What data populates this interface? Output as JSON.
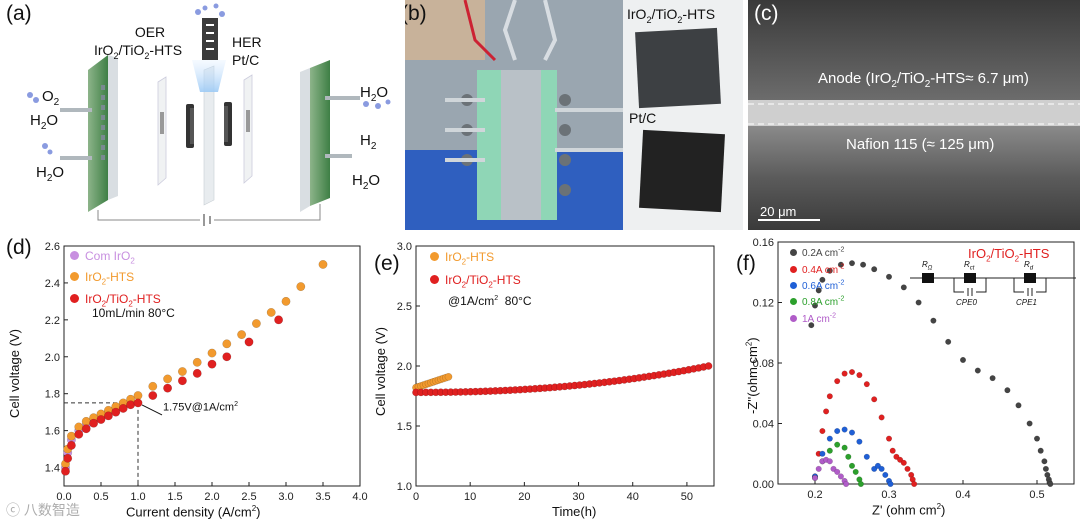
{
  "panel_a": {
    "label": "(a)",
    "oer_line1": "OER",
    "oer_line2_pre": "IrO",
    "oer_line2_sub1": "2",
    "oer_line2_mid": "/TiO",
    "oer_line2_sub2": "2",
    "oer_line2_post": "-HTS",
    "her_line1": "HER",
    "her_line2": "Pt/C",
    "o2_pre": "O",
    "o2_sub": "2",
    "h2o_left_top": "H",
    "h2o_left_top_sub": "2",
    "h2o_left_top_post": "O",
    "h2o_left_bottom": "H",
    "h2o_left_bottom_sub": "2",
    "h2o_left_bottom_post": "O",
    "h2o_right_top": "H",
    "h2o_right_top_sub": "2",
    "h2o_right_top_post": "O",
    "h2_right": "H",
    "h2_right_sub": "2",
    "h2o_right_bottom": "H",
    "h2o_right_bottom_sub": "2",
    "h2o_right_bottom_post": "O"
  },
  "panel_b": {
    "label": "(b)",
    "sample1_pre": "IrO",
    "sample1_sub1": "2",
    "sample1_mid": "/TiO",
    "sample1_sub2": "2",
    "sample1_post": "-HTS",
    "sample2": "Pt/C"
  },
  "panel_c": {
    "label": "(c)",
    "anode_pre": "Anode (IrO",
    "anode_sub1": "2",
    "anode_mid": "/TiO",
    "anode_sub2": "2",
    "anode_post": "-HTS≈ 6.7 μm)",
    "nafion": "Nafion 115 (≈ 125 μm)",
    "scale": "20 μm"
  },
  "panel_d": {
    "label": "(d)",
    "legend": [
      {
        "pre": "Com IrO",
        "sub": "2",
        "post": "",
        "color": "#c890e0"
      },
      {
        "pre": "IrO",
        "sub": "2",
        "post": "-HTS",
        "color": "#f29a2e"
      },
      {
        "pre": "IrO",
        "sub": "2",
        "post": "/TiO",
        "sub2": "2",
        "post2": "-HTS",
        "color": "#e02020"
      }
    ],
    "condition": "10mL/min 80°C",
    "annotation": "1.75V@1A/cm",
    "annotation_sup": "2",
    "xlabel": "Current density (A/cm",
    "xlabel_sup": "2",
    "xlabel_end": ")",
    "ylabel": "Cell voltage (V)"
  },
  "panel_e": {
    "label": "(e)",
    "legend": [
      {
        "pre": "IrO",
        "sub": "2",
        "post": "-HTS",
        "color": "#f29a2e"
      },
      {
        "pre": "IrO",
        "sub": "2",
        "post": "/TiO",
        "sub2": "2",
        "post2": "-HTS",
        "color": "#e02020"
      }
    ],
    "condition_pre": "@1A/cm",
    "condition_sup": "2",
    "condition_post": "  80°C",
    "xlabel": "Time(h)",
    "ylabel": "Cell voltage (V)"
  },
  "panel_f": {
    "label": "(f)",
    "title_pre": "IrO",
    "title_sub1": "2",
    "title_mid": "/TiO",
    "title_sub2": "2",
    "title_post": "-HTS",
    "legend": [
      {
        "text": "0.2A cm",
        "sup": "-2",
        "color": "#444444"
      },
      {
        "text": "0.4A cm",
        "sup": "-2",
        "color": "#e02020"
      },
      {
        "text": "0.6A cm",
        "sup": "-2",
        "color": "#1f5fd6"
      },
      {
        "text": "0.8A cm",
        "sup": "-2",
        "color": "#2ca02c"
      },
      {
        "text": "1A cm",
        "sup": "-2",
        "color": "#b05cc8"
      }
    ],
    "circuit": {
      "r1": "R",
      "r1_sub": "Ω",
      "r2": "R",
      "r2_sub": "ct",
      "r3": "R",
      "r3_sub": "d",
      "cpe0": "CPE0",
      "cpe1": "CPE1"
    },
    "xlabel_pre": "Z' (ohm cm",
    "xlabel_sup": "2",
    "xlabel_post": ")",
    "ylabel_pre": "-Z''(ohm cm",
    "ylabel_sup": "2",
    "ylabel_post": ")"
  },
  "watermark": "ⓒ 八数智造",
  "chart_data": [
    {
      "id": "d",
      "type": "scatter",
      "xlim": [
        0,
        4.0
      ],
      "ylim": [
        1.3,
        2.6
      ],
      "xticks": [
        "0.0",
        "0.5",
        "1.0",
        "1.5",
        "2.0",
        "2.5",
        "3.0",
        "3.5",
        "4.0"
      ],
      "yticks": [
        "1.4",
        "1.6",
        "1.8",
        "2.0",
        "2.2",
        "2.4",
        "2.6"
      ],
      "xlabel": "Current density (A/cm2)",
      "ylabel": "Cell voltage (V)",
      "series": [
        {
          "name": "Com IrO2",
          "color": "#c890e0",
          "x": [
            0.02,
            0.05,
            0.1,
            0.2,
            0.3,
            0.4,
            0.5,
            0.6,
            0.7,
            0.8
          ],
          "y": [
            1.4,
            1.48,
            1.55,
            1.6,
            1.63,
            1.66,
            1.68,
            1.7,
            1.72,
            1.74
          ]
        },
        {
          "name": "IrO2-HTS",
          "color": "#f29a2e",
          "x": [
            0.02,
            0.05,
            0.1,
            0.2,
            0.3,
            0.4,
            0.5,
            0.6,
            0.7,
            0.8,
            0.9,
            1.0,
            1.2,
            1.4,
            1.6,
            1.8,
            2.0,
            2.2,
            2.4,
            2.6,
            2.8,
            3.0,
            3.2,
            3.5
          ],
          "y": [
            1.42,
            1.5,
            1.57,
            1.62,
            1.65,
            1.67,
            1.69,
            1.71,
            1.73,
            1.75,
            1.77,
            1.79,
            1.84,
            1.88,
            1.92,
            1.97,
            2.02,
            2.07,
            2.12,
            2.18,
            2.24,
            2.3,
            2.38,
            2.5
          ]
        },
        {
          "name": "IrO2/TiO2-HTS",
          "color": "#e02020",
          "x": [
            0.02,
            0.05,
            0.1,
            0.2,
            0.3,
            0.4,
            0.5,
            0.6,
            0.7,
            0.8,
            0.9,
            1.0,
            1.2,
            1.4,
            1.6,
            1.8,
            2.0,
            2.2,
            2.5,
            2.9
          ],
          "y": [
            1.38,
            1.45,
            1.52,
            1.58,
            1.61,
            1.64,
            1.66,
            1.68,
            1.7,
            1.72,
            1.74,
            1.75,
            1.79,
            1.83,
            1.87,
            1.91,
            1.96,
            2.0,
            2.08,
            2.2
          ]
        }
      ],
      "annotation": {
        "x": 1.0,
        "y": 1.75,
        "text": "1.75V@1A/cm2"
      }
    },
    {
      "id": "e",
      "type": "scatter",
      "xlim": [
        0,
        55
      ],
      "ylim": [
        1.0,
        3.0
      ],
      "xticks": [
        "0",
        "10",
        "20",
        "30",
        "40",
        "50"
      ],
      "yticks": [
        "1.0",
        "1.5",
        "2.0",
        "2.5",
        "3.0"
      ],
      "xlabel": "Time(h)",
      "ylabel": "Cell voltage (V)",
      "series": [
        {
          "name": "IrO2-HTS",
          "color": "#f29a2e",
          "x_start": 0,
          "x_end": 6,
          "y_start": 1.82,
          "y_end": 1.91,
          "count": 14
        },
        {
          "name": "IrO2/TiO2-HTS",
          "color": "#e02020",
          "x_start": 0,
          "x_end": 54,
          "y_start": 1.78,
          "y_end": 2.0,
          "count": 60
        }
      ]
    },
    {
      "id": "f",
      "type": "scatter",
      "xlim": [
        0.15,
        0.55
      ],
      "ylim": [
        0.0,
        0.16
      ],
      "xticks": [
        "0.2",
        "0.3",
        "0.4",
        "0.5"
      ],
      "yticks": [
        "0.00",
        "0.04",
        "0.08",
        "0.12",
        "0.16"
      ],
      "xlabel": "Z' (ohm cm2)",
      "ylabel": "-Z''(ohm cm2)",
      "series": [
        {
          "name": "0.2A cm-2",
          "color": "#444444",
          "x": [
            0.195,
            0.2,
            0.205,
            0.21,
            0.22,
            0.235,
            0.25,
            0.265,
            0.28,
            0.3,
            0.32,
            0.34,
            0.36,
            0.38,
            0.4,
            0.42,
            0.44,
            0.46,
            0.475,
            0.49,
            0.5,
            0.505,
            0.51,
            0.512,
            0.514,
            0.516,
            0.517,
            0.518
          ],
          "y": [
            0.105,
            0.118,
            0.128,
            0.135,
            0.141,
            0.145,
            0.146,
            0.145,
            0.142,
            0.137,
            0.13,
            0.12,
            0.108,
            0.094,
            0.082,
            0.075,
            0.07,
            0.062,
            0.052,
            0.04,
            0.03,
            0.022,
            0.015,
            0.01,
            0.006,
            0.003,
            0.001,
            0.0
          ]
        },
        {
          "name": "0.4A cm-2",
          "color": "#e02020",
          "x": [
            0.2,
            0.205,
            0.21,
            0.215,
            0.22,
            0.23,
            0.24,
            0.25,
            0.26,
            0.27,
            0.28,
            0.29,
            0.3,
            0.305,
            0.31,
            0.315,
            0.32,
            0.325,
            0.33,
            0.332,
            0.334
          ],
          "y": [
            0.005,
            0.02,
            0.035,
            0.048,
            0.058,
            0.068,
            0.073,
            0.074,
            0.072,
            0.066,
            0.056,
            0.044,
            0.03,
            0.022,
            0.018,
            0.016,
            0.014,
            0.01,
            0.006,
            0.003,
            0.0
          ]
        },
        {
          "name": "0.6A cm-2",
          "color": "#1f5fd6",
          "x": [
            0.2,
            0.21,
            0.22,
            0.23,
            0.24,
            0.25,
            0.26,
            0.27,
            0.28,
            0.285,
            0.29,
            0.295,
            0.3,
            0.302
          ],
          "y": [
            0.005,
            0.02,
            0.03,
            0.035,
            0.036,
            0.034,
            0.028,
            0.018,
            0.01,
            0.012,
            0.01,
            0.006,
            0.002,
            0.0
          ]
        },
        {
          "name": "0.8A cm-2",
          "color": "#2ca02c",
          "x": [
            0.2,
            0.21,
            0.22,
            0.23,
            0.24,
            0.245,
            0.25,
            0.255,
            0.26,
            0.262
          ],
          "y": [
            0.004,
            0.015,
            0.022,
            0.026,
            0.024,
            0.018,
            0.012,
            0.008,
            0.003,
            0.0
          ]
        },
        {
          "name": "1A cm-2",
          "color": "#b05cc8",
          "x": [
            0.2,
            0.205,
            0.21,
            0.215,
            0.22,
            0.225,
            0.23,
            0.235,
            0.24,
            0.242
          ],
          "y": [
            0.004,
            0.01,
            0.015,
            0.016,
            0.015,
            0.01,
            0.008,
            0.005,
            0.002,
            0.0
          ]
        }
      ]
    }
  ]
}
